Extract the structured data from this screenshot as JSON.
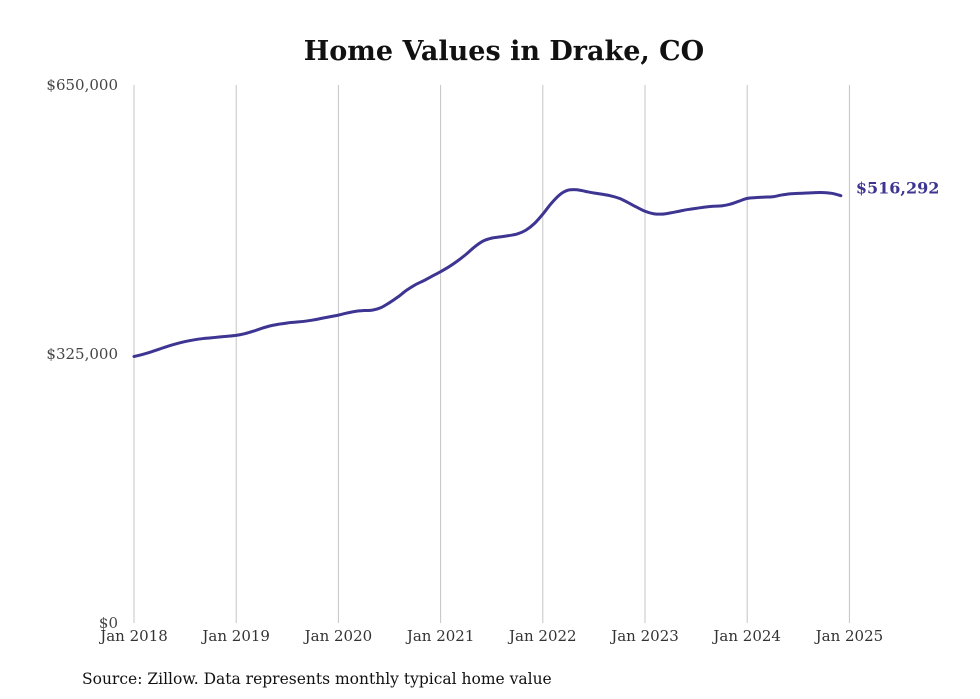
{
  "chart_data": {
    "type": "line",
    "title": "Home Values in Drake, CO",
    "xlabel": "",
    "ylabel": "",
    "source_note": "Source: Zillow. Data represents monthly typical home value",
    "ylim": [
      0,
      650000
    ],
    "yticks": [
      {
        "value": 0,
        "label": "$0"
      },
      {
        "value": 325000,
        "label": "$325,000"
      },
      {
        "value": 650000,
        "label": "$650,000"
      }
    ],
    "xticks": [
      {
        "value": "2018-01",
        "label": "Jan 2018"
      },
      {
        "value": "2019-01",
        "label": "Jan 2019"
      },
      {
        "value": "2020-01",
        "label": "Jan 2020"
      },
      {
        "value": "2021-01",
        "label": "Jan 2021"
      },
      {
        "value": "2022-01",
        "label": "Jan 2022"
      },
      {
        "value": "2023-01",
        "label": "Jan 2023"
      },
      {
        "value": "2024-01",
        "label": "Jan 2024"
      },
      {
        "value": "2025-01",
        "label": "Jan 2025"
      }
    ],
    "grid": {
      "vertical": true,
      "horizontal": false
    },
    "series": [
      {
        "color": "#3d3591",
        "end_label": "$516,292",
        "points": [
          [
            "2018-01",
            322000
          ],
          [
            "2018-02",
            324500
          ],
          [
            "2018-03",
            327500
          ],
          [
            "2018-04",
            331000
          ],
          [
            "2018-05",
            334500
          ],
          [
            "2018-06",
            337500
          ],
          [
            "2018-07",
            340000
          ],
          [
            "2018-08",
            342000
          ],
          [
            "2018-09",
            343500
          ],
          [
            "2018-10",
            344500
          ],
          [
            "2018-11",
            345500
          ],
          [
            "2018-12",
            346500
          ],
          [
            "2019-01",
            347500
          ],
          [
            "2019-02",
            349500
          ],
          [
            "2019-03",
            352500
          ],
          [
            "2019-04",
            356000
          ],
          [
            "2019-05",
            359000
          ],
          [
            "2019-06",
            361000
          ],
          [
            "2019-07",
            362500
          ],
          [
            "2019-08",
            363500
          ],
          [
            "2019-09",
            364500
          ],
          [
            "2019-10",
            366000
          ],
          [
            "2019-11",
            368000
          ],
          [
            "2019-12",
            370000
          ],
          [
            "2020-01",
            372000
          ],
          [
            "2020-02",
            374500
          ],
          [
            "2020-03",
            376500
          ],
          [
            "2020-04",
            377500
          ],
          [
            "2020-05",
            378000
          ],
          [
            "2020-06",
            381000
          ],
          [
            "2020-07",
            387000
          ],
          [
            "2020-08",
            394000
          ],
          [
            "2020-09",
            402000
          ],
          [
            "2020-10",
            408500
          ],
          [
            "2020-11",
            413500
          ],
          [
            "2020-12",
            419000
          ],
          [
            "2021-01",
            424500
          ],
          [
            "2021-02",
            430500
          ],
          [
            "2021-03",
            437500
          ],
          [
            "2021-04",
            445500
          ],
          [
            "2021-05",
            454500
          ],
          [
            "2021-06",
            461500
          ],
          [
            "2021-07",
            465000
          ],
          [
            "2021-08",
            466500
          ],
          [
            "2021-09",
            468000
          ],
          [
            "2021-10",
            470000
          ],
          [
            "2021-11",
            474500
          ],
          [
            "2021-12",
            482500
          ],
          [
            "2022-01",
            494000
          ],
          [
            "2022-02",
            507000
          ],
          [
            "2022-03",
            517500
          ],
          [
            "2022-04",
            523000
          ],
          [
            "2022-05",
            523500
          ],
          [
            "2022-06",
            521500
          ],
          [
            "2022-07",
            519500
          ],
          [
            "2022-08",
            518000
          ],
          [
            "2022-09",
            516000
          ],
          [
            "2022-10",
            513000
          ],
          [
            "2022-11",
            508000
          ],
          [
            "2022-12",
            502500
          ],
          [
            "2023-01",
            497500
          ],
          [
            "2023-02",
            494500
          ],
          [
            "2023-03",
            494000
          ],
          [
            "2023-04",
            495500
          ],
          [
            "2023-05",
            497500
          ],
          [
            "2023-06",
            499500
          ],
          [
            "2023-07",
            501000
          ],
          [
            "2023-08",
            502500
          ],
          [
            "2023-09",
            503500
          ],
          [
            "2023-10",
            504000
          ],
          [
            "2023-11",
            506000
          ],
          [
            "2023-12",
            509500
          ],
          [
            "2024-01",
            513000
          ],
          [
            "2024-02",
            514000
          ],
          [
            "2024-03",
            514500
          ],
          [
            "2024-04",
            515000
          ],
          [
            "2024-05",
            517000
          ],
          [
            "2024-06",
            518500
          ],
          [
            "2024-07",
            519000
          ],
          [
            "2024-08",
            519500
          ],
          [
            "2024-09",
            520000
          ],
          [
            "2024-10",
            520000
          ],
          [
            "2024-11",
            519000
          ],
          [
            "2024-12",
            516292
          ]
        ]
      }
    ]
  }
}
